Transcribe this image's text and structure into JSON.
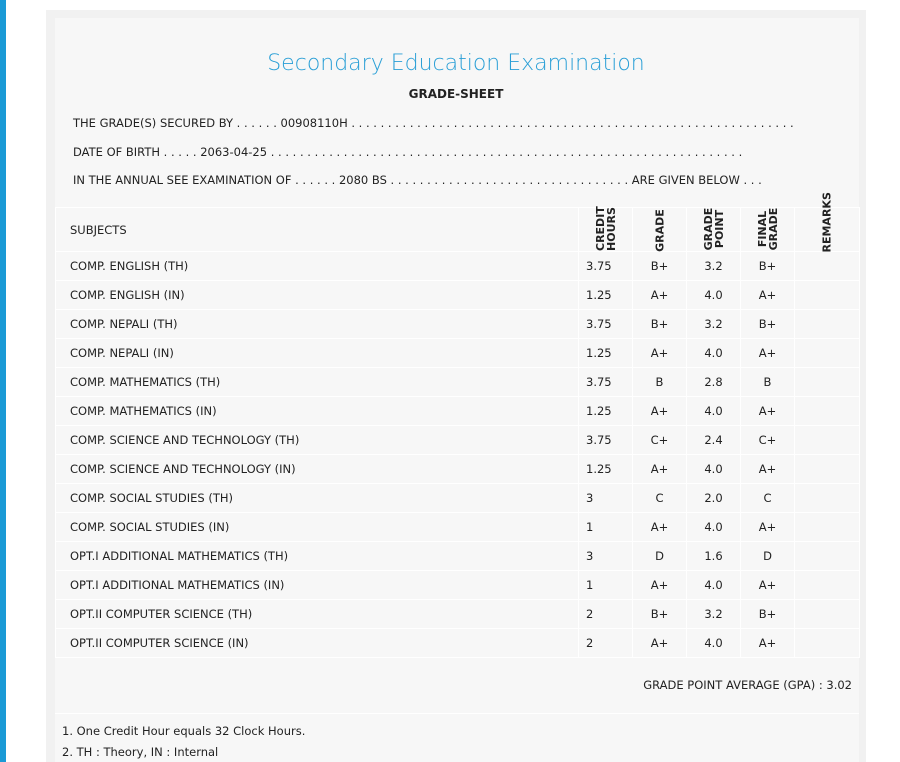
{
  "header": {
    "title": "Secondary Education Examination",
    "subtitle": "GRADE-SHEET"
  },
  "info": [
    "THE GRADE(S) SECURED BY . . . . . . 00908110H . . . . . . . . . . . . . . . . . . . . . . . . . . . . . . . . . . . . . . . . . . . . . . . . . . . . . . . . . . . . .",
    "DATE OF BIRTH . . . . . 2063-04-25 . . . . . . . . . . . . . . . . . . . . . . . . . . . . . . . . . . . . . . . . . . . . . . . . . . . . . . . . . . . . . . . . .",
    "IN THE ANNUAL SEE EXAMINATION OF . . . . . . 2080 BS . . . . . . . . . . . . . . . . . . . . . . . . . . . . . . . . . ARE GIVEN BELOW . . ."
  ],
  "table": {
    "headers": [
      "SUBJECTS",
      "CREDIT HOURS",
      "GRADE",
      "GRADE POINT",
      "FINAL GRADE",
      "REMARKS"
    ],
    "rows": [
      [
        "COMP. ENGLISH (TH)",
        "3.75",
        "B+",
        "3.2",
        "B+"
      ],
      [
        "COMP. ENGLISH (IN)",
        "1.25",
        "A+",
        "4.0",
        "A+"
      ],
      [
        "COMP. NEPALI (TH)",
        "3.75",
        "B+",
        "3.2",
        "B+"
      ],
      [
        "COMP. NEPALI (IN)",
        "1.25",
        "A+",
        "4.0",
        "A+"
      ],
      [
        "COMP. MATHEMATICS (TH)",
        "3.75",
        "B",
        "2.8",
        "B"
      ],
      [
        "COMP. MATHEMATICS (IN)",
        "1.25",
        "A+",
        "4.0",
        "A+"
      ],
      [
        "COMP. SCIENCE AND TECHNOLOGY (TH)",
        "3.75",
        "C+",
        "2.4",
        "C+"
      ],
      [
        "COMP. SCIENCE AND TECHNOLOGY (IN)",
        "1.25",
        "A+",
        "4.0",
        "A+"
      ],
      [
        "COMP. SOCIAL STUDIES (TH)",
        "3",
        "C",
        "2.0",
        "C"
      ],
      [
        "COMP. SOCIAL STUDIES (IN)",
        "1",
        "A+",
        "4.0",
        "A+"
      ],
      [
        "OPT.I ADDITIONAL MATHEMATICS (TH)",
        "3",
        "D",
        "1.6",
        "D"
      ],
      [
        "OPT.I ADDITIONAL MATHEMATICS (IN)",
        "1",
        "A+",
        "4.0",
        "A+"
      ],
      [
        "OPT.II COMPUTER SCIENCE (TH)",
        "2",
        "B+",
        "3.2",
        "B+"
      ],
      [
        "OPT.II COMPUTER SCIENCE (IN)",
        "2",
        "A+",
        "4.0",
        "A+"
      ]
    ]
  },
  "gpa": {
    "label": "GRADE POINT AVERAGE (GPA) :",
    "value": "3.02"
  },
  "notes": [
    "1. One Credit Hour equals 32 Clock Hours.",
    "2. TH : Theory, IN : Internal"
  ]
}
